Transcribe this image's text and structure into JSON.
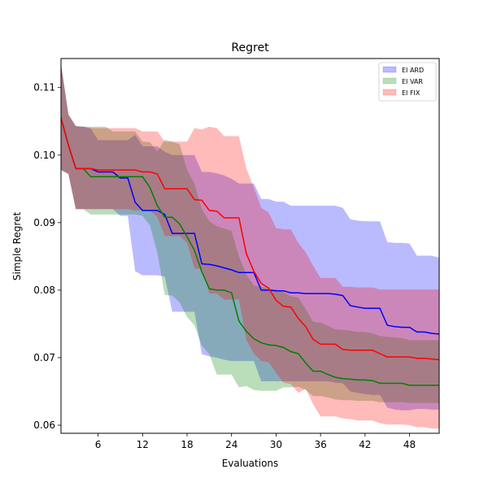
{
  "chart_data": {
    "type": "line",
    "title": "Regret",
    "xlabel": "Evaluations",
    "ylabel": "Simple Regret",
    "xlim": [
      1,
      52
    ],
    "ylim": [
      0.0588,
      0.1143
    ],
    "xticks": [
      6,
      12,
      18,
      24,
      30,
      36,
      42,
      48
    ],
    "yticks": [
      0.06,
      0.07,
      0.08,
      0.09,
      0.1,
      0.11
    ],
    "ytick_labels": [
      "0.06",
      "0.07",
      "0.08",
      "0.09",
      "0.10",
      "0.11"
    ],
    "grid": false,
    "legend": "top-right",
    "x": [
      1,
      2,
      3,
      4,
      5,
      6,
      7,
      8,
      9,
      10,
      11,
      12,
      13,
      14,
      15,
      16,
      17,
      18,
      19,
      20,
      21,
      22,
      23,
      24,
      25,
      26,
      27,
      28,
      29,
      30,
      31,
      32,
      33,
      34,
      35,
      36,
      37,
      38,
      39,
      40,
      41,
      42,
      43,
      44,
      45,
      46,
      47,
      48,
      49,
      50,
      51,
      52
    ],
    "series": [
      {
        "name": "EI ARD",
        "color": "#0000ff",
        "mean": [
          0.1055,
          0.1015,
          0.098,
          0.098,
          0.098,
          0.0975,
          0.0975,
          0.0975,
          0.0966,
          0.0966,
          0.093,
          0.0918,
          0.0918,
          0.0918,
          0.0912,
          0.0884,
          0.0884,
          0.0884,
          0.0884,
          0.0839,
          0.0838,
          0.0836,
          0.0833,
          0.083,
          0.0826,
          0.0826,
          0.0826,
          0.08,
          0.08,
          0.0799,
          0.0799,
          0.0796,
          0.0796,
          0.0795,
          0.0795,
          0.0795,
          0.0795,
          0.0794,
          0.0792,
          0.0777,
          0.0775,
          0.0773,
          0.0773,
          0.0773,
          0.0748,
          0.0746,
          0.0745,
          0.0745,
          0.0738,
          0.0738,
          0.0736,
          0.0735
        ],
        "upper": [
          0.1135,
          0.106,
          0.1043,
          0.1042,
          0.104,
          0.1022,
          0.1022,
          0.1022,
          0.1022,
          0.1022,
          0.103,
          0.1013,
          0.1013,
          0.1013,
          0.1005,
          0.1,
          0.1,
          0.1,
          0.1,
          0.0975,
          0.0975,
          0.0973,
          0.097,
          0.0965,
          0.0958,
          0.0958,
          0.0958,
          0.0935,
          0.0935,
          0.0931,
          0.0931,
          0.0925,
          0.0925,
          0.0925,
          0.0925,
          0.0925,
          0.0925,
          0.0925,
          0.0922,
          0.0905,
          0.0903,
          0.0902,
          0.0902,
          0.0902,
          0.0871,
          0.087,
          0.087,
          0.0869,
          0.0851,
          0.0851,
          0.0851,
          0.0848
        ],
        "lower": [
          0.0978,
          0.0972,
          0.092,
          0.092,
          0.092,
          0.092,
          0.092,
          0.092,
          0.091,
          0.091,
          0.0828,
          0.0822,
          0.0822,
          0.0822,
          0.082,
          0.0768,
          0.0768,
          0.0768,
          0.0768,
          0.0705,
          0.0702,
          0.07,
          0.0697,
          0.0695,
          0.0695,
          0.0695,
          0.0695,
          0.0665,
          0.0665,
          0.0665,
          0.0665,
          0.0665,
          0.0665,
          0.0665,
          0.0665,
          0.0665,
          0.0665,
          0.0663,
          0.0662,
          0.065,
          0.0648,
          0.0646,
          0.0645,
          0.0645,
          0.0626,
          0.0623,
          0.0622,
          0.0622,
          0.0624,
          0.0624,
          0.0623,
          0.0623
        ]
      },
      {
        "name": "EI VAR",
        "color": "#008000",
        "mean": [
          0.1055,
          0.1015,
          0.098,
          0.098,
          0.0968,
          0.0968,
          0.0968,
          0.0968,
          0.0968,
          0.0968,
          0.0968,
          0.0968,
          0.0952,
          0.0925,
          0.0908,
          0.0908,
          0.0898,
          0.0879,
          0.0859,
          0.0827,
          0.0802,
          0.08,
          0.08,
          0.0796,
          0.0754,
          0.0739,
          0.0728,
          0.0722,
          0.0719,
          0.0718,
          0.0715,
          0.0709,
          0.0706,
          0.0692,
          0.068,
          0.068,
          0.0675,
          0.0671,
          0.0669,
          0.0668,
          0.0667,
          0.0667,
          0.0666,
          0.0662,
          0.0662,
          0.0662,
          0.0662,
          0.0659,
          0.0659,
          0.0659,
          0.0659,
          0.0659
        ],
        "upper": [
          0.1135,
          0.106,
          0.1043,
          0.1042,
          0.1042,
          0.1042,
          0.1042,
          0.1035,
          0.1035,
          0.1035,
          0.1035,
          0.102,
          0.1019,
          0.1005,
          0.1023,
          0.102,
          0.1016,
          0.0978,
          0.0958,
          0.092,
          0.0902,
          0.0895,
          0.0891,
          0.0888,
          0.085,
          0.0823,
          0.0807,
          0.0805,
          0.0802,
          0.0801,
          0.0797,
          0.0791,
          0.0789,
          0.0772,
          0.0753,
          0.0752,
          0.0747,
          0.0742,
          0.0741,
          0.074,
          0.0738,
          0.0738,
          0.0736,
          0.0732,
          0.0731,
          0.073,
          0.0729,
          0.0726,
          0.0726,
          0.0726,
          0.0726,
          0.0726
        ],
        "lower": [
          0.0978,
          0.0972,
          0.092,
          0.092,
          0.0912,
          0.0912,
          0.0912,
          0.0912,
          0.0912,
          0.0912,
          0.0912,
          0.091,
          0.0896,
          0.0855,
          0.0793,
          0.0792,
          0.0782,
          0.076,
          0.0748,
          0.0718,
          0.0705,
          0.0675,
          0.0675,
          0.0675,
          0.0656,
          0.0658,
          0.0652,
          0.0651,
          0.0651,
          0.0651,
          0.0656,
          0.0656,
          0.0657,
          0.0652,
          0.0643,
          0.0643,
          0.0641,
          0.0638,
          0.0637,
          0.0637,
          0.0636,
          0.0636,
          0.0636,
          0.0634,
          0.0634,
          0.0634,
          0.0634,
          0.0633,
          0.0633,
          0.0633,
          0.0633,
          0.0633
        ]
      },
      {
        "name": "EI FIX",
        "color": "#ff0000",
        "mean": [
          0.1055,
          0.1015,
          0.098,
          0.098,
          0.098,
          0.0978,
          0.0978,
          0.0978,
          0.0978,
          0.0978,
          0.0978,
          0.0975,
          0.0975,
          0.0972,
          0.095,
          0.095,
          0.095,
          0.095,
          0.0934,
          0.0933,
          0.0918,
          0.0917,
          0.0907,
          0.0907,
          0.0907,
          0.0854,
          0.0828,
          0.081,
          0.0803,
          0.0785,
          0.0776,
          0.0775,
          0.0758,
          0.0746,
          0.0727,
          0.072,
          0.072,
          0.072,
          0.0712,
          0.0711,
          0.0711,
          0.0711,
          0.0711,
          0.0706,
          0.0701,
          0.0701,
          0.0701,
          0.0701,
          0.0699,
          0.0699,
          0.0698,
          0.0697
        ],
        "upper": [
          0.1135,
          0.106,
          0.1043,
          0.1042,
          0.104,
          0.104,
          0.104,
          0.104,
          0.104,
          0.104,
          0.104,
          0.1035,
          0.1035,
          0.1035,
          0.102,
          0.102,
          0.102,
          0.102,
          0.104,
          0.1038,
          0.1042,
          0.104,
          0.1028,
          0.1028,
          0.1028,
          0.098,
          0.0952,
          0.0922,
          0.0915,
          0.0892,
          0.089,
          0.089,
          0.087,
          0.0856,
          0.0836,
          0.0818,
          0.0818,
          0.0818,
          0.0805,
          0.0805,
          0.0804,
          0.0804,
          0.0804,
          0.0801,
          0.0801,
          0.0801,
          0.0801,
          0.0801,
          0.0801,
          0.0801,
          0.0801,
          0.0801
        ],
        "lower": [
          0.0978,
          0.0972,
          0.092,
          0.092,
          0.092,
          0.092,
          0.092,
          0.092,
          0.092,
          0.092,
          0.0918,
          0.0918,
          0.0918,
          0.0908,
          0.088,
          0.088,
          0.088,
          0.087,
          0.0832,
          0.0831,
          0.0795,
          0.0795,
          0.0786,
          0.0786,
          0.0786,
          0.0726,
          0.0706,
          0.0695,
          0.0693,
          0.0678,
          0.0663,
          0.0661,
          0.0648,
          0.0654,
          0.0631,
          0.0613,
          0.0613,
          0.0613,
          0.061,
          0.0609,
          0.0607,
          0.0607,
          0.0607,
          0.0603,
          0.0601,
          0.0601,
          0.0601,
          0.06,
          0.0597,
          0.0597,
          0.0595,
          0.0595
        ]
      }
    ]
  }
}
